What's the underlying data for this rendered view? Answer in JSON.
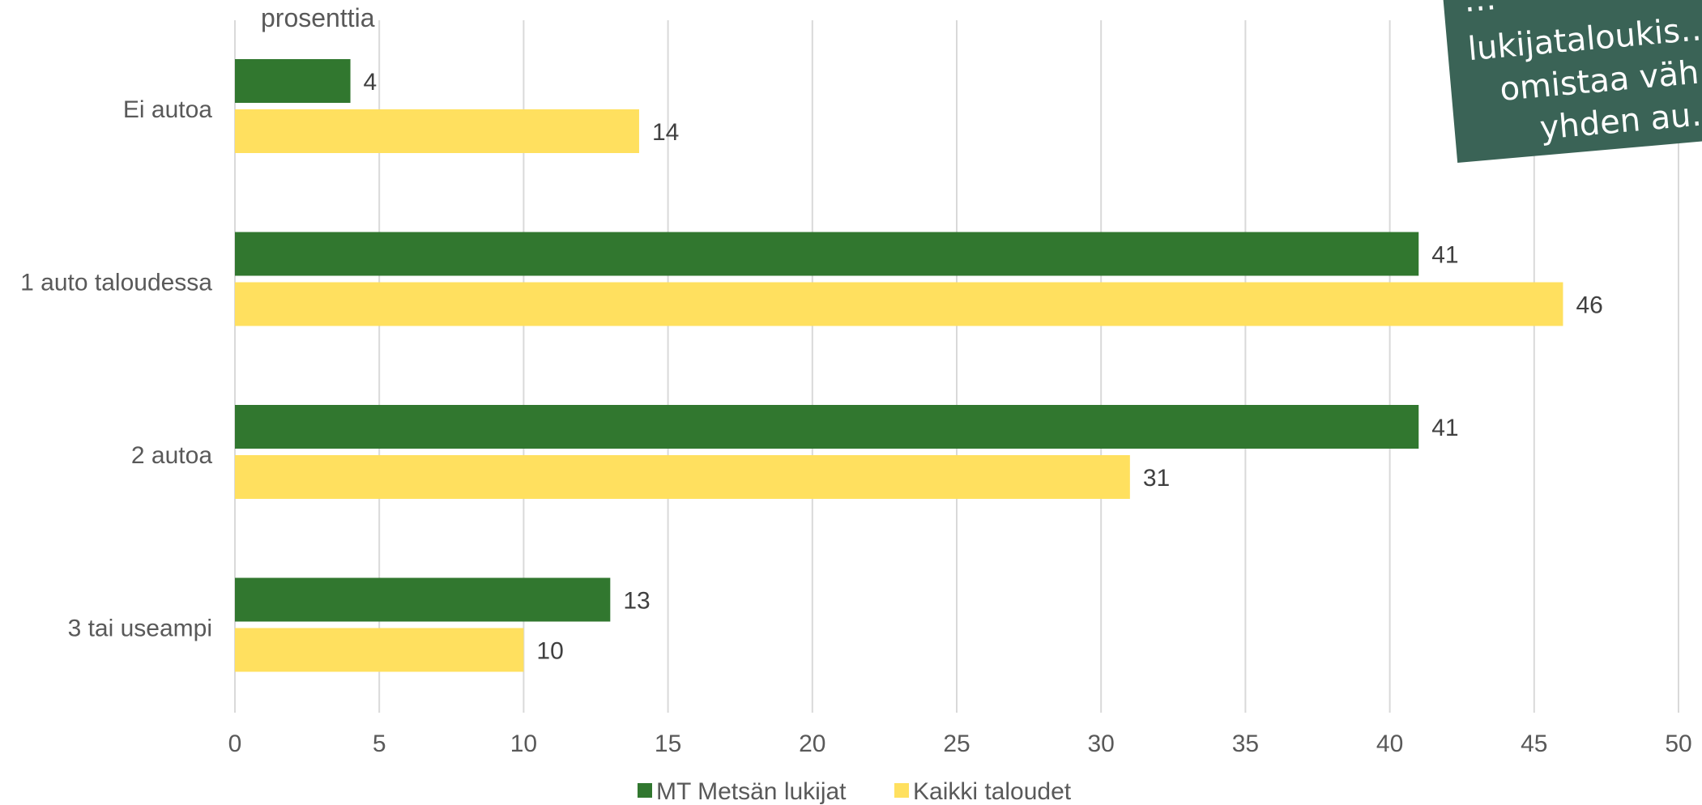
{
  "chart_data": {
    "type": "bar",
    "orientation": "horizontal",
    "unit_label": "prosenttia",
    "categories": [
      "Ei autoa",
      "1 auto taloudessa",
      "2 autoa",
      "3 tai useampi"
    ],
    "series": [
      {
        "name": "MT Metsän lukijat",
        "color": "#31772f",
        "values": [
          4,
          41,
          41,
          13
        ]
      },
      {
        "name": "Kaikki taloudet",
        "color": "#ffe05f",
        "values": [
          14,
          46,
          31,
          10
        ]
      }
    ],
    "x_ticks": [
      "0",
      "5",
      "10",
      "15",
      "20",
      "25",
      "30",
      "35",
      "40",
      "45",
      "50"
    ],
    "xlim": [
      0,
      50
    ],
    "grid": "vertical",
    "legend_position": "bottom",
    "data_labels": true,
    "callout": {
      "lines": [
        "…",
        "lukijataloukis…",
        "omistaa väh…",
        "yhden au…"
      ],
      "color": "#3a6356"
    }
  }
}
